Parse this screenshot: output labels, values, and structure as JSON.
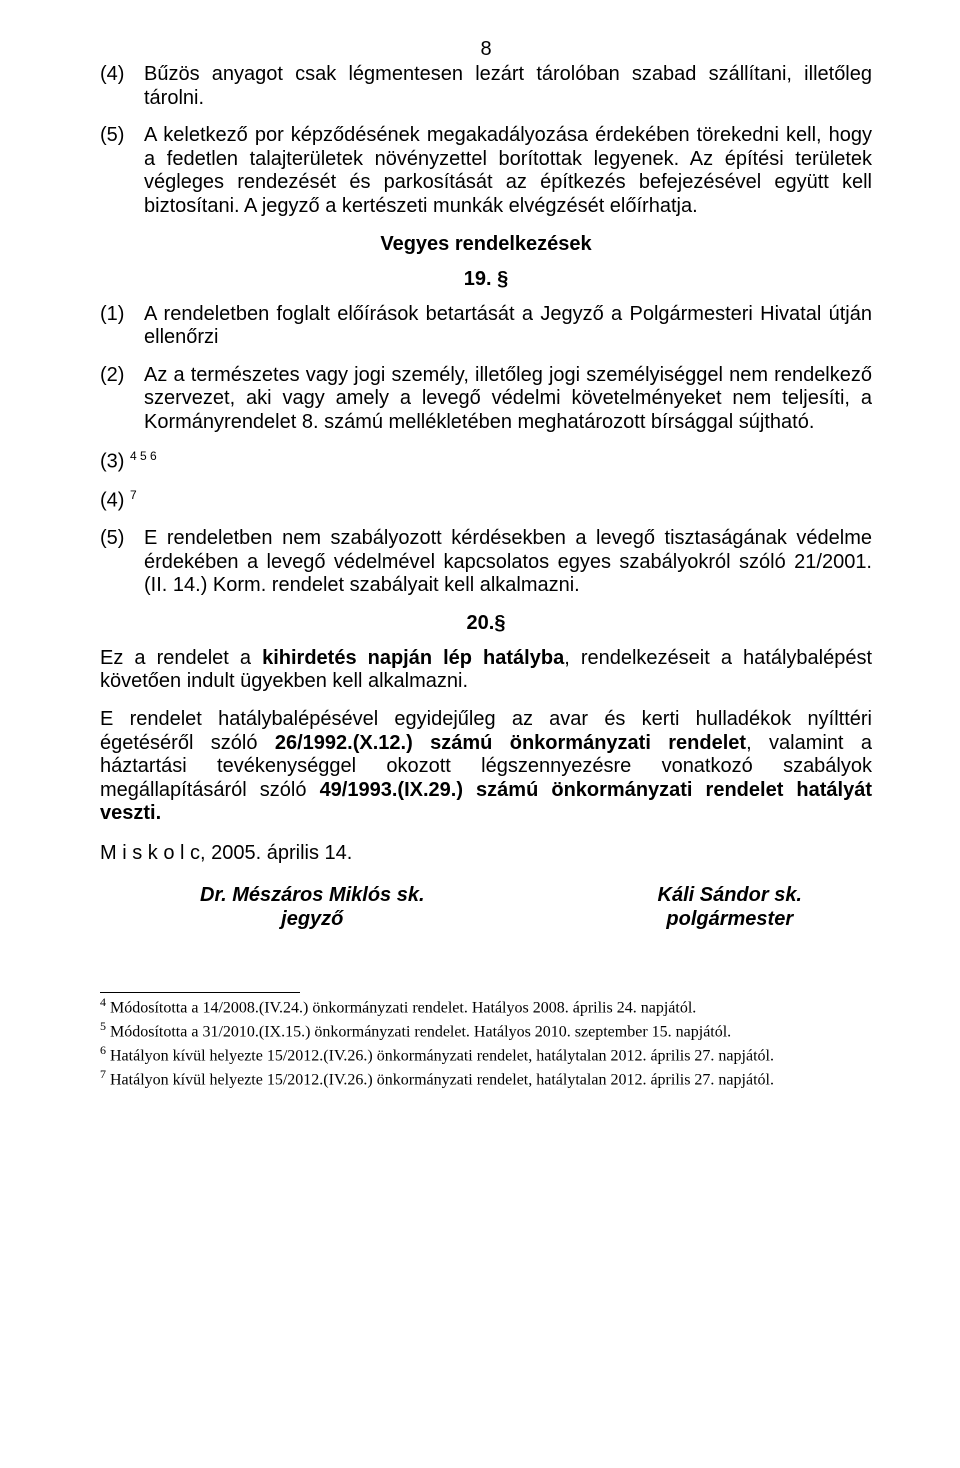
{
  "page_number": "8",
  "para_4": {
    "num": "(4)",
    "text": "Bűzös anyagot csak légmentesen lezárt tárolóban szabad szállítani, illetőleg tárolni."
  },
  "para_5": {
    "num": "(5)",
    "text": "A keletkező por képződésének megakadályozása érdekében törekedni kell, hogy a fedetlen talajterületek növényzettel borítottak legyenek. Az építési területek végleges rendezését és parkosítását az építkezés befejezésével együtt kell biztosítani. A jegyző a kertészeti munkák elvégzését előírhatja."
  },
  "heading_vegyes": "Vegyes rendelkezések",
  "section_19": "19. §",
  "para_19_1": {
    "num": "(1)",
    "text": "A rendeletben foglalt előírások betartását a Jegyző a Polgármesteri Hivatal útján ellenőrzi"
  },
  "para_19_2": {
    "num": "(2)",
    "text": "Az a természetes vagy jogi személy, illetőleg jogi személyiséggel nem rendelkező szervezet, aki vagy amely a levegő védelmi követelményeket nem teljesíti, a Kormányrendelet 8. számú mellékletében meghatározott bírsággal sújtható."
  },
  "para_19_3": {
    "num": "(3)",
    "sup": "4 5 6"
  },
  "para_19_4": {
    "num": "(4)",
    "sup": "7"
  },
  "para_19_5": {
    "num": "(5)",
    "text": "E rendeletben nem szabályozott kérdésekben a levegő tisztaságának védelme érdekében a levegő védelmével kapcsolatos egyes szabályokról szóló 21/2001. (II. 14.) Korm. rendelet szabályait kell alkalmazni."
  },
  "section_20": "20.§",
  "plain_a_pre": "Ez a rendelet a ",
  "plain_a_bold": "kihirdetés napján lép hatályba",
  "plain_a_post": ", rendelkezéseit a hatálybalépést követően indult ügyekben kell alkalmazni.",
  "plain_b_pre": "E rendelet hatálybalépésével egyidejűleg az avar és kerti hulladékok nyílttéri égetéséről szóló ",
  "plain_b_bold1": "26/1992.(X.12.) számú önkormányzati rendelet",
  "plain_b_mid": ", valamint a háztartási tevékenységgel okozott légszennyezésre vonatkozó szabályok megállapításáról szóló ",
  "plain_b_bold2": "49/1993.(IX.29.) számú önkormányzati rendelet hatályát veszti.",
  "date_line": "M i s k o l c, 2005. április 14.",
  "sig_left_name": "Dr. Mészáros Miklós sk.",
  "sig_left_role": "jegyző",
  "sig_right_name": "Káli Sándor sk.",
  "sig_right_role": "polgármester",
  "fn4": {
    "n": "4",
    "text": " Módosította a 14/2008.(IV.24.) önkormányzati rendelet. Hatályos 2008. április 24. napjától."
  },
  "fn5": {
    "n": "5",
    "text": " Módosította a 31/2010.(IX.15.) önkormányzati rendelet. Hatályos 2010. szeptember 15. napjától."
  },
  "fn6": {
    "n": "6",
    "text": " Hatályon kívül helyezte 15/2012.(IV.26.) önkormányzati rendelet, hatálytalan 2012. április 27. napjától."
  },
  "fn7": {
    "n": "7",
    "text": " Hatályon kívül helyezte 15/2012.(IV.26.) önkormányzati rendelet, hatálytalan 2012. április 27. napjától."
  }
}
